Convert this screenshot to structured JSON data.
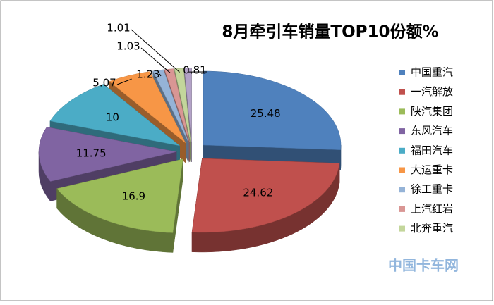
{
  "chart_data": {
    "type": "pie3d",
    "title": "8月牵引车销量TOP10份额%",
    "categories": [
      "中国重汽",
      "一汽解放",
      "陕汽集团",
      "东风汽车",
      "福田汽车",
      "大运重卡",
      "徐工重卡",
      "上汽红岩",
      "北奔重汽",
      null
    ],
    "values": [
      25.48,
      24.62,
      16.9,
      11.75,
      10,
      5.07,
      1.23,
      1.03,
      1.01,
      0.81
    ],
    "colors": [
      "#4f81bd",
      "#c0504d",
      "#9bbb59",
      "#8064a2",
      "#4bacc6",
      "#f79646",
      "#95b3d7",
      "#d99694",
      "#c3d69b",
      "#b3a2c7"
    ],
    "legend": "right",
    "watermark": "中国卡车网"
  }
}
